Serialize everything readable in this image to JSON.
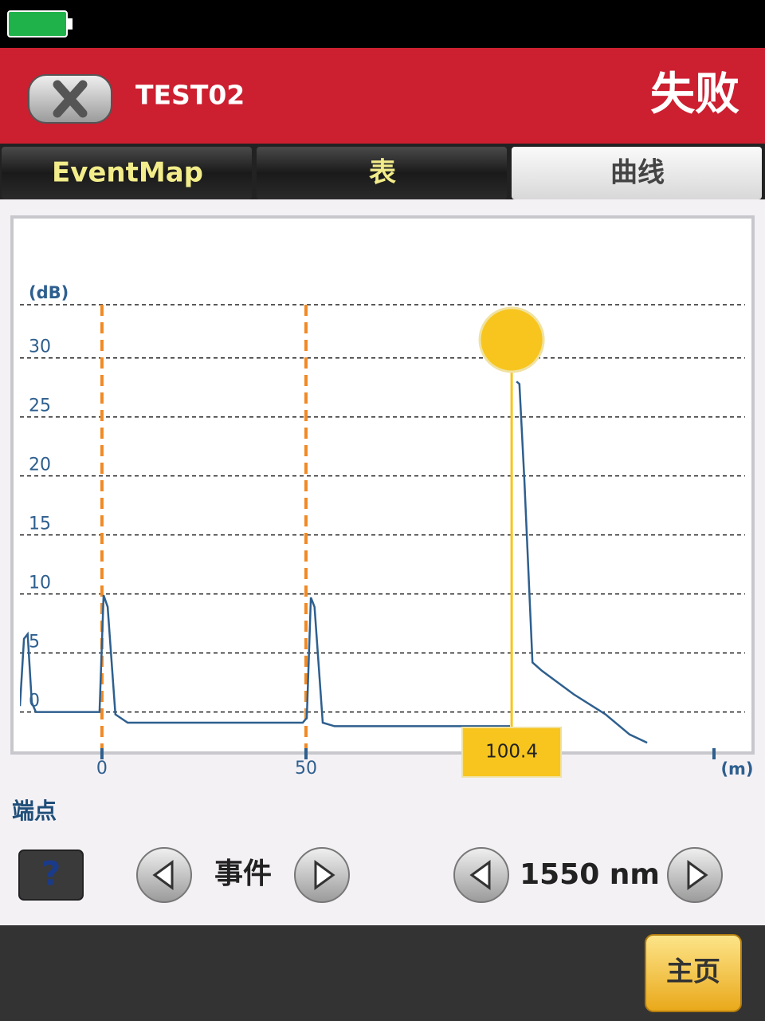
{
  "header": {
    "title": "TEST02",
    "status": "失败"
  },
  "tabs": [
    "EventMap",
    "表",
    "曲线"
  ],
  "active_tab": 2,
  "chart_data": {
    "type": "line",
    "y_label": "(dB)",
    "x_label": "(m)",
    "x": [
      -20.1,
      -19.1,
      -18.2,
      -17.2,
      -16.2,
      -0.6,
      0.4,
      1.4,
      3.3,
      6.3,
      49.2,
      50.2,
      51.2,
      52.1,
      54.1,
      57.0,
      100.0,
      101.0,
      101.6,
      102.3,
      103.5,
      105.5,
      107.8,
      115.6,
      123.4,
      129.3,
      133.6
    ],
    "values": [
      0.5,
      6.2,
      6.6,
      0.8,
      0,
      0,
      9.9,
      8.9,
      -0.2,
      -0.9,
      -0.9,
      -0.5,
      9.7,
      8.9,
      -0.9,
      -1.2,
      -1.2,
      null,
      28.0,
      27.8,
      19.7,
      4.2,
      3.5,
      1.5,
      -0.2,
      -1.9,
      -2.6
    ],
    "color": "#2e5f8e",
    "xlim": [
      -20.1,
      157.6
    ],
    "ylim": [
      -3.2,
      41.4
    ],
    "xticks": [
      0,
      50
    ],
    "yticks": [
      0,
      5,
      10,
      15,
      20,
      25,
      30
    ],
    "grid": true,
    "events": [
      0,
      50
    ],
    "event_color": "#f08a24",
    "cursor": 100.4,
    "cursor_color": "#f7c51e"
  },
  "endpoint_label": "端点",
  "controls": {
    "help": "?",
    "event": "事件",
    "wavelength": "1550 nm"
  },
  "home": "主页"
}
